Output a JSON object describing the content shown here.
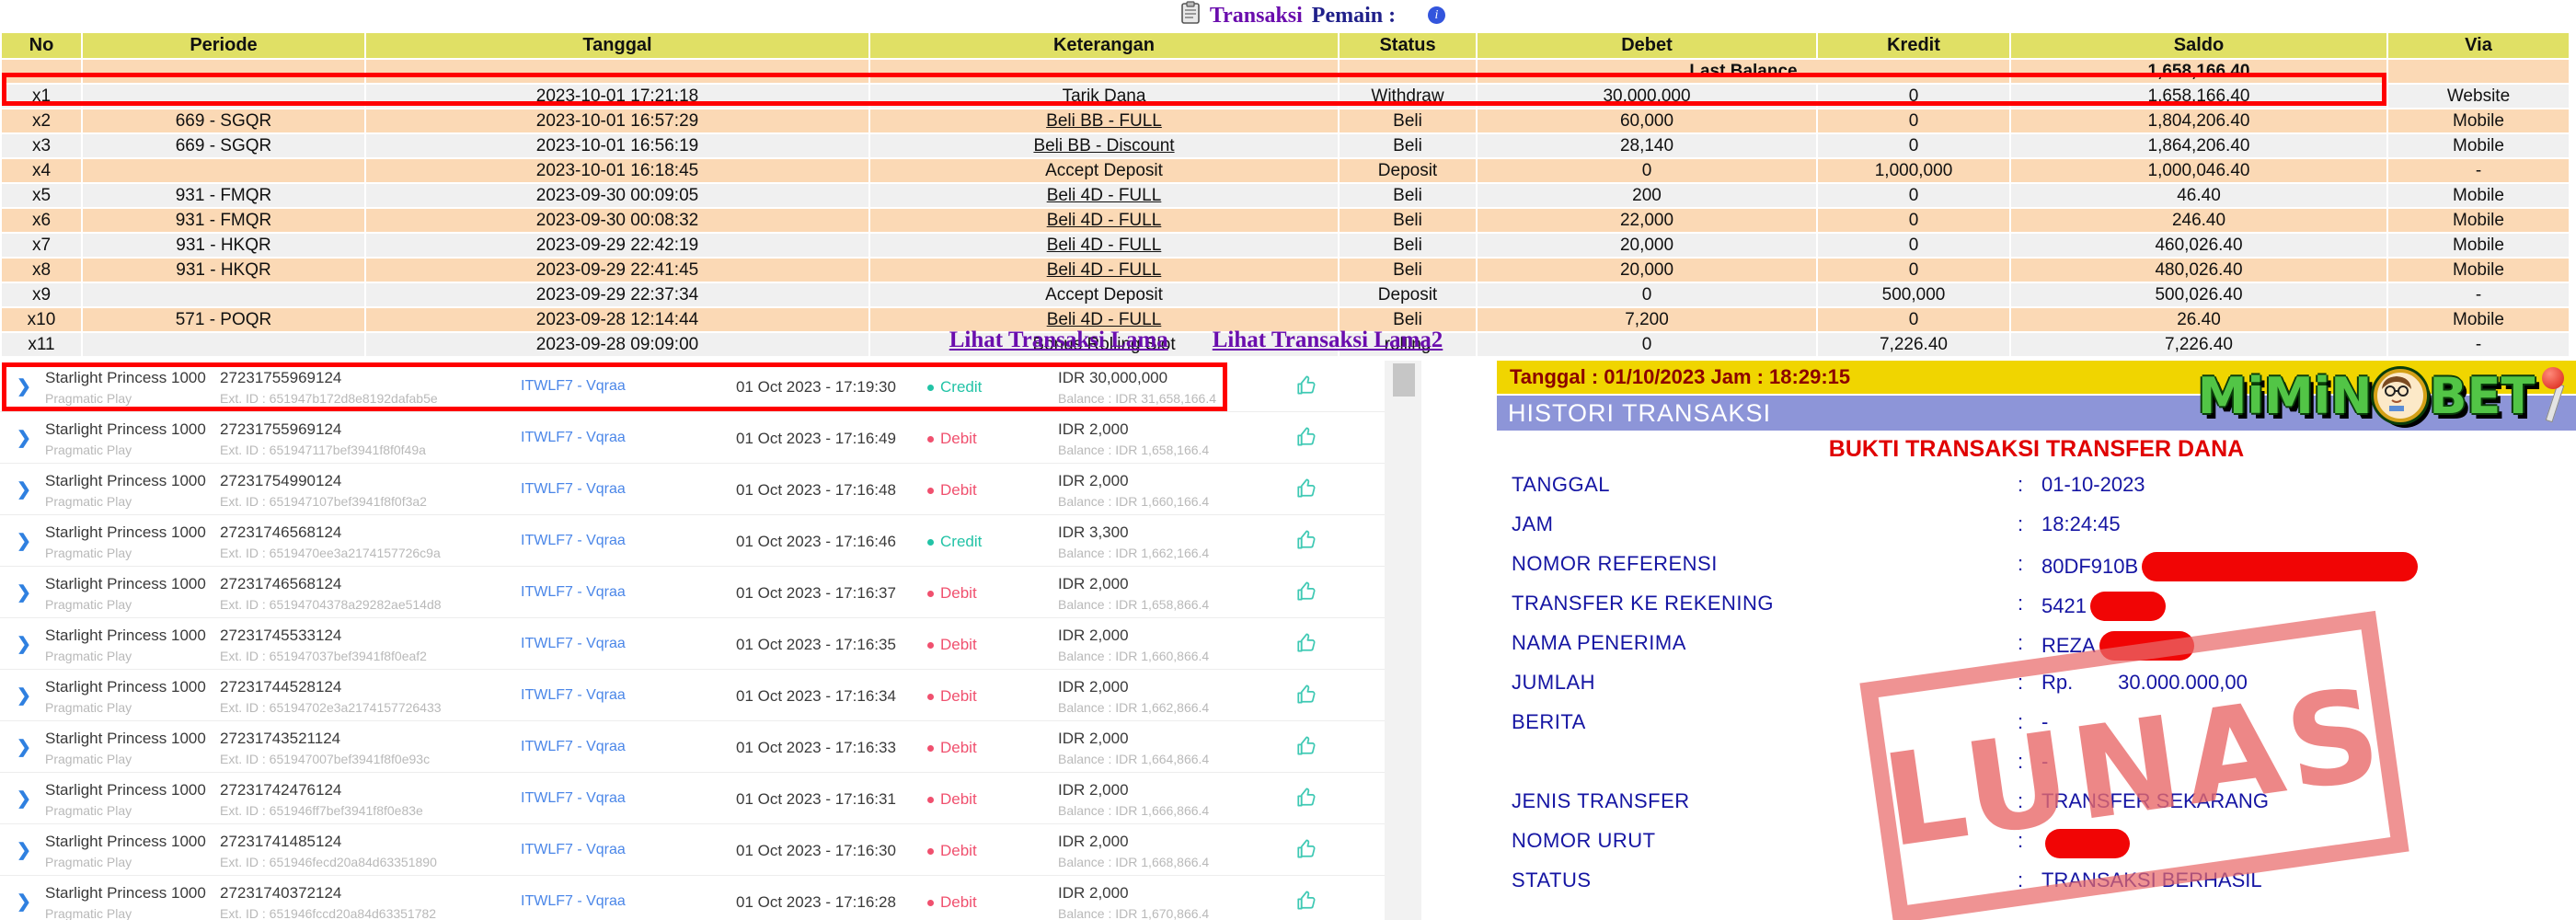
{
  "header": {
    "title_word1": "Transaksi",
    "title_word2": "Pemain :",
    "icons": [
      "clipboard-icon",
      "info-icon"
    ]
  },
  "colors": {
    "highlight_border": "#ff0000",
    "table_header_yellow": "#e0e065",
    "row_peach": "#fbd9b5",
    "row_gray": "#f0f0f0",
    "status_red": "#e04848",
    "keterangan_link_purple": "#9b30d6",
    "saldo_purple": "#6a35d0",
    "last_balance_purple": "#9a10b8",
    "receipt_bar_yellow": "#f0d500",
    "receipt_bar_blue": "#8d95d8",
    "receipt_navy": "#1515a3",
    "receipt_title_red": "#e00000",
    "stamp_pink": "#e96969",
    "credit_teal": "#22c3a6",
    "debit_red": "#f0506e",
    "site_link_blue": "#4a86e8",
    "logo_green": "#52c546"
  },
  "table": {
    "columns": [
      "No",
      "Periode",
      "Tanggal",
      "Keterangan",
      "Status",
      "Debet",
      "Kredit",
      "Saldo",
      "Via"
    ],
    "last_balance": {
      "label": "Last Balance",
      "value": "1,658,166.40"
    },
    "rows": [
      {
        "no": "x1",
        "periode": "",
        "tanggal": "2023-10-01 17:21:18",
        "keterangan": "Tarik Dana",
        "is_link": false,
        "status": "Withdraw",
        "debet": "30,000,000",
        "kredit": "0",
        "saldo": "1,658,166.40",
        "via": "Website",
        "shade": "gray",
        "highlighted": true
      },
      {
        "no": "x2",
        "periode": "669 - SGQR",
        "tanggal": "2023-10-01 16:57:29",
        "keterangan": "Beli BB - FULL",
        "is_link": true,
        "status": "Beli",
        "debet": "60,000",
        "kredit": "0",
        "saldo": "1,804,206.40",
        "via": "Mobile",
        "shade": "peach",
        "highlighted": false
      },
      {
        "no": "x3",
        "periode": "669 - SGQR",
        "tanggal": "2023-10-01 16:56:19",
        "keterangan": "Beli BB - Discount",
        "is_link": true,
        "status": "Beli",
        "debet": "28,140",
        "kredit": "0",
        "saldo": "1,864,206.40",
        "via": "Mobile",
        "shade": "gray",
        "highlighted": false
      },
      {
        "no": "x4",
        "periode": "",
        "tanggal": "2023-10-01 16:18:45",
        "keterangan": "Accept Deposit",
        "is_link": false,
        "status": "Deposit",
        "debet": "0",
        "kredit": "1,000,000",
        "saldo": "1,000,046.40",
        "via": "-",
        "shade": "peach",
        "highlighted": false
      },
      {
        "no": "x5",
        "periode": "931 - FMQR",
        "tanggal": "2023-09-30 00:09:05",
        "keterangan": "Beli 4D - FULL",
        "is_link": true,
        "status": "Beli",
        "debet": "200",
        "kredit": "0",
        "saldo": "46.40",
        "via": "Mobile",
        "shade": "gray",
        "highlighted": false
      },
      {
        "no": "x6",
        "periode": "931 - FMQR",
        "tanggal": "2023-09-30 00:08:32",
        "keterangan": "Beli 4D - FULL",
        "is_link": true,
        "status": "Beli",
        "debet": "22,000",
        "kredit": "0",
        "saldo": "246.40",
        "via": "Mobile",
        "shade": "peach",
        "highlighted": false
      },
      {
        "no": "x7",
        "periode": "931 - HKQR",
        "tanggal": "2023-09-29 22:42:19",
        "keterangan": "Beli 4D - FULL",
        "is_link": true,
        "status": "Beli",
        "debet": "20,000",
        "kredit": "0",
        "saldo": "460,026.40",
        "via": "Mobile",
        "shade": "gray",
        "highlighted": false
      },
      {
        "no": "x8",
        "periode": "931 - HKQR",
        "tanggal": "2023-09-29 22:41:45",
        "keterangan": "Beli 4D - FULL",
        "is_link": true,
        "status": "Beli",
        "debet": "20,000",
        "kredit": "0",
        "saldo": "480,026.40",
        "via": "Mobile",
        "shade": "peach",
        "highlighted": false
      },
      {
        "no": "x9",
        "periode": "",
        "tanggal": "2023-09-29 22:37:34",
        "keterangan": "Accept Deposit",
        "is_link": false,
        "status": "Deposit",
        "debet": "0",
        "kredit": "500,000",
        "saldo": "500,026.40",
        "via": "-",
        "shade": "gray",
        "highlighted": false
      },
      {
        "no": "x10",
        "periode": "571 - POQR",
        "tanggal": "2023-09-28 12:14:44",
        "keterangan": "Beli 4D - FULL",
        "is_link": true,
        "status": "Beli",
        "debet": "7,200",
        "kredit": "0",
        "saldo": "26.40",
        "via": "Mobile",
        "shade": "peach",
        "highlighted": false
      },
      {
        "no": "x11",
        "periode": "",
        "tanggal": "2023-09-28 09:09:00",
        "keterangan": "Bonus Rolling Slot",
        "is_link": false,
        "status": "rolling",
        "debet": "0",
        "kredit": "7,226.40",
        "saldo": "7,226.40",
        "via": "-",
        "shade": "gray",
        "highlighted": false
      }
    ],
    "links": [
      "Lihat Transaksi Lama",
      "Lihat Transaksi Lama2"
    ]
  },
  "games": {
    "rows": [
      {
        "game": "Starlight Princess 1000",
        "provider": "Pragmatic Play",
        "txid": "27231755969124",
        "ext_id": "Ext. ID : 651947b172d8e8192dafab5e",
        "site": "ITWLF7 - Vqraa",
        "date": "01 Oct 2023 - 17:19:30",
        "type": "Credit",
        "amount": "IDR 30,000,000",
        "balance": "Balance : IDR 31,658,166.4",
        "highlighted": true
      },
      {
        "game": "Starlight Princess 1000",
        "provider": "Pragmatic Play",
        "txid": "27231755969124",
        "ext_id": "Ext. ID : 651947117bef3941f8f0f49a",
        "site": "ITWLF7 - Vqraa",
        "date": "01 Oct 2023 - 17:16:49",
        "type": "Debit",
        "amount": "IDR 2,000",
        "balance": "Balance : IDR 1,658,166.4",
        "highlighted": false
      },
      {
        "game": "Starlight Princess 1000",
        "provider": "Pragmatic Play",
        "txid": "27231754990124",
        "ext_id": "Ext. ID : 651947107bef3941f8f0f3a2",
        "site": "ITWLF7 - Vqraa",
        "date": "01 Oct 2023 - 17:16:48",
        "type": "Debit",
        "amount": "IDR 2,000",
        "balance": "Balance : IDR 1,660,166.4",
        "highlighted": false
      },
      {
        "game": "Starlight Princess 1000",
        "provider": "Pragmatic Play",
        "txid": "27231746568124",
        "ext_id": "Ext. ID : 6519470ee3a2174157726c9a",
        "site": "ITWLF7 - Vqraa",
        "date": "01 Oct 2023 - 17:16:46",
        "type": "Credit",
        "amount": "IDR 3,300",
        "balance": "Balance : IDR 1,662,166.4",
        "highlighted": false
      },
      {
        "game": "Starlight Princess 1000",
        "provider": "Pragmatic Play",
        "txid": "27231746568124",
        "ext_id": "Ext. ID : 65194704378a29282ae514d8",
        "site": "ITWLF7 - Vqraa",
        "date": "01 Oct 2023 - 17:16:37",
        "type": "Debit",
        "amount": "IDR 2,000",
        "balance": "Balance : IDR 1,658,866.4",
        "highlighted": false
      },
      {
        "game": "Starlight Princess 1000",
        "provider": "Pragmatic Play",
        "txid": "27231745533124",
        "ext_id": "Ext. ID : 651947037bef3941f8f0eaf2",
        "site": "ITWLF7 - Vqraa",
        "date": "01 Oct 2023 - 17:16:35",
        "type": "Debit",
        "amount": "IDR 2,000",
        "balance": "Balance : IDR 1,660,866.4",
        "highlighted": false
      },
      {
        "game": "Starlight Princess 1000",
        "provider": "Pragmatic Play",
        "txid": "27231744528124",
        "ext_id": "Ext. ID : 65194702e3a2174157726433",
        "site": "ITWLF7 - Vqraa",
        "date": "01 Oct 2023 - 17:16:34",
        "type": "Debit",
        "amount": "IDR 2,000",
        "balance": "Balance : IDR 1,662,866.4",
        "highlighted": false
      },
      {
        "game": "Starlight Princess 1000",
        "provider": "Pragmatic Play",
        "txid": "27231743521124",
        "ext_id": "Ext. ID : 651947007bef3941f8f0e93c",
        "site": "ITWLF7 - Vqraa",
        "date": "01 Oct 2023 - 17:16:33",
        "type": "Debit",
        "amount": "IDR 2,000",
        "balance": "Balance : IDR 1,664,866.4",
        "highlighted": false
      },
      {
        "game": "Starlight Princess 1000",
        "provider": "Pragmatic Play",
        "txid": "27231742476124",
        "ext_id": "Ext. ID : 651946ff7bef3941f8f0e83e",
        "site": "ITWLF7 - Vqraa",
        "date": "01 Oct 2023 - 17:16:31",
        "type": "Debit",
        "amount": "IDR 2,000",
        "balance": "Balance : IDR 1,666,866.4",
        "highlighted": false
      },
      {
        "game": "Starlight Princess 1000",
        "provider": "Pragmatic Play",
        "txid": "27231741485124",
        "ext_id": "Ext. ID : 651946fecd20a84d63351890",
        "site": "ITWLF7 - Vqraa",
        "date": "01 Oct 2023 - 17:16:30",
        "type": "Debit",
        "amount": "IDR 2,000",
        "balance": "Balance : IDR 1,668,866.4",
        "highlighted": false
      },
      {
        "game": "Starlight Princess 1000",
        "provider": "Pragmatic Play",
        "txid": "27231740372124",
        "ext_id": "Ext. ID : 651946fccd20a84d63351782",
        "site": "ITWLF7 - Vqraa",
        "date": "01 Oct 2023 - 17:16:28",
        "type": "Debit",
        "amount": "IDR 2,000",
        "balance": "Balance : IDR 1,670,866.4",
        "highlighted": false
      }
    ]
  },
  "receipt": {
    "datetime_bar": "Tanggal : 01/10/2023 Jam : 18:29:15",
    "histori_bar": "HISTORI TRANSAKSI",
    "title": "BUKTI TRANSAKSI TRANSFER DANA",
    "stamp": "LUNAS",
    "logo": {
      "part1": "MiMiN",
      "part2": "BET"
    },
    "rows": [
      {
        "label": "TANGGAL",
        "colon": ":",
        "value": "01-10-2023",
        "redact_w": 0
      },
      {
        "label": "JAM",
        "colon": ":",
        "value": "18:24:45",
        "redact_w": 0
      },
      {
        "label": "NOMOR REFERENSI",
        "colon": ":",
        "value": "80DF910B",
        "redact_w": 300
      },
      {
        "label": "TRANSFER KE REKENING",
        "colon": ":",
        "value": "5421",
        "redact_w": 82
      },
      {
        "label": "NAMA PENERIMA",
        "colon": ":",
        "value": "REZA",
        "redact_w": 103
      },
      {
        "label": "JUMLAH",
        "colon": ":",
        "value": "Rp.        30.000.000,00",
        "redact_w": 0
      },
      {
        "label": "BERITA",
        "colon": ":",
        "value": "-",
        "redact_w": 0
      },
      {
        "label": "",
        "colon": ":",
        "value": "-",
        "redact_w": 0
      },
      {
        "label": "JENIS TRANSFER",
        "colon": ":",
        "value": "TRANSFER SEKARANG",
        "redact_w": 0
      },
      {
        "label": "NOMOR URUT",
        "colon": ":",
        "value": "",
        "redact_w": 92
      },
      {
        "label": "STATUS",
        "colon": ":",
        "value": "TRANSAKSI BERHASIL",
        "redact_w": 0
      }
    ]
  }
}
